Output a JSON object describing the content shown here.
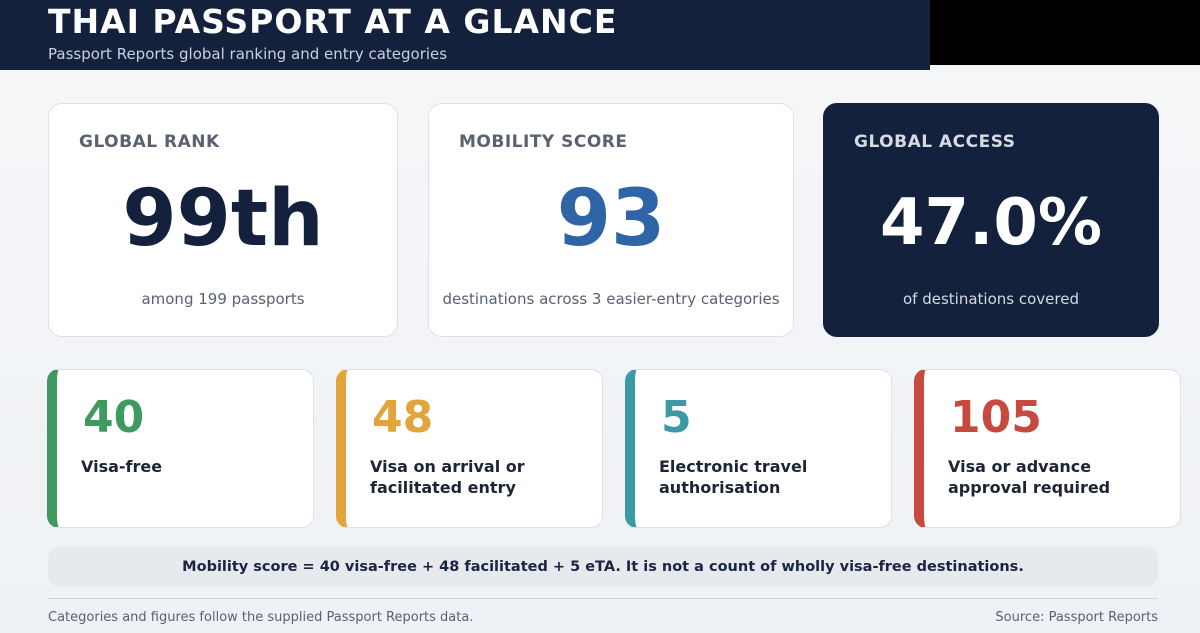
{
  "header": {
    "title": "THAI PASSPORT AT A GLANCE",
    "subtitle": "Passport Reports global ranking and entry categories"
  },
  "stats": [
    {
      "label": "GLOBAL RANK",
      "value": "99th",
      "caption": "among 199 passports"
    },
    {
      "label": "MOBILITY SCORE",
      "value": 93,
      "caption": "destinations across 3 easier-entry categories"
    },
    {
      "label": "GLOBAL ACCESS",
      "value": "47.0%",
      "caption": "of destinations covered"
    }
  ],
  "categories": [
    {
      "value": 40,
      "label": "Visa-free",
      "color": "#3e9a5e"
    },
    {
      "value": 48,
      "label": "Visa on arrival or facilitated entry",
      "color": "#e2a53c"
    },
    {
      "value": 5,
      "label": "Electronic travel authorisation",
      "color": "#3b9aa3"
    },
    {
      "value": 105,
      "label": "Visa or advance approval required",
      "color": "#c8493f"
    }
  ],
  "note": "Mobility score = 40 visa-free + 48 facilitated + 5 eTA. It is not a count of wholly visa-free destinations.",
  "footer": {
    "left": "Categories and figures follow the supplied Passport Reports data.",
    "right": "Source: Passport Reports"
  }
}
